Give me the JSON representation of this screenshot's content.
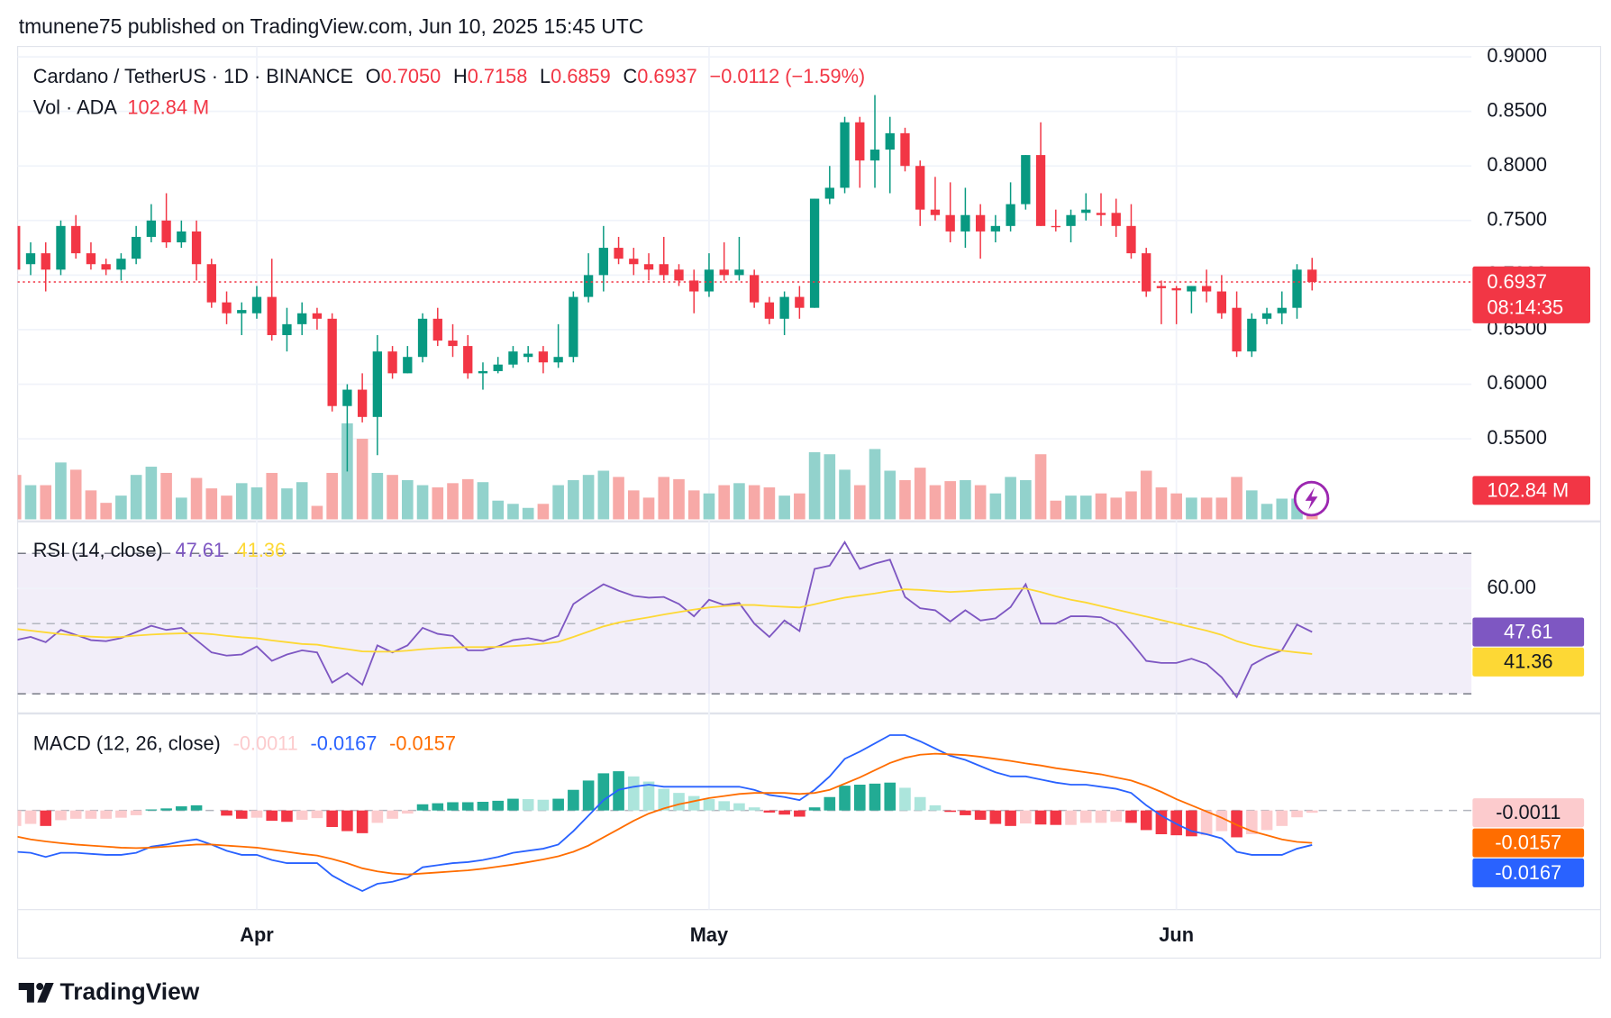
{
  "header": "tmunene75 published on TradingView.com, Jun 10, 2025 15:45 UTC",
  "footer": "TradingView",
  "chart_data": [
    {
      "type": "candlestick",
      "title": "Cardano / TetherUS · 1D · BINANCE",
      "ohlc_keys": [
        "O",
        "H",
        "L",
        "C"
      ],
      "ohlc_labels": [
        "0.7050",
        "0.7158",
        "0.6859",
        "0.6937"
      ],
      "change": "−0.0112 (−1.59%)",
      "countdown": "08:14:35",
      "up_color": "#089981",
      "down_color": "#f23645",
      "grid": true,
      "categories": [
        null,
        null,
        null,
        null,
        null,
        null,
        null,
        null,
        null,
        null,
        null,
        null,
        null,
        null,
        null,
        null,
        "Apr",
        null,
        null,
        null,
        null,
        null,
        null,
        null,
        null,
        null,
        null,
        null,
        null,
        null,
        null,
        null,
        null,
        null,
        null,
        null,
        null,
        null,
        null,
        null,
        null,
        null,
        null,
        null,
        null,
        null,
        "May",
        null,
        null,
        null,
        null,
        null,
        null,
        null,
        null,
        null,
        null,
        null,
        null,
        null,
        null,
        null,
        null,
        null,
        null,
        null,
        null,
        null,
        null,
        null,
        null,
        null,
        null,
        null,
        null,
        null,
        null,
        "Jun",
        null,
        null,
        null,
        null,
        null,
        null,
        null,
        null,
        null
      ],
      "open": [
        0.745,
        0.71,
        0.72,
        0.705,
        0.745,
        0.72,
        0.71,
        0.705,
        0.715,
        0.735,
        0.75,
        0.73,
        0.74,
        0.71,
        0.675,
        0.665,
        0.665,
        0.68,
        0.645,
        0.655,
        0.665,
        0.66,
        0.58,
        0.595,
        0.57,
        0.63,
        0.61,
        0.625,
        0.66,
        0.64,
        0.635,
        0.61,
        0.612,
        0.618,
        0.625,
        0.63,
        0.62,
        0.625,
        0.68,
        0.7,
        0.725,
        0.715,
        0.71,
        0.71,
        0.705,
        0.695,
        0.685,
        0.705,
        0.7,
        0.7,
        0.675,
        0.66,
        0.68,
        0.67,
        0.77,
        0.78,
        0.84,
        0.805,
        0.815,
        0.83,
        0.8,
        0.76,
        0.755,
        0.74,
        0.755,
        0.74,
        0.745,
        0.765,
        0.81,
        0.745,
        0.745,
        0.757,
        0.757,
        0.757,
        0.745,
        0.72,
        0.69,
        0.688,
        0.685,
        0.69,
        0.685,
        0.67,
        0.63,
        0.66,
        0.665,
        0.67,
        0.705
      ],
      "high": [
        0.745,
        0.73,
        0.73,
        0.75,
        0.755,
        0.73,
        0.715,
        0.72,
        0.745,
        0.765,
        0.775,
        0.75,
        0.75,
        0.715,
        0.685,
        0.675,
        0.69,
        0.715,
        0.67,
        0.675,
        0.67,
        0.665,
        0.6,
        0.61,
        0.645,
        0.635,
        0.635,
        0.665,
        0.67,
        0.655,
        0.645,
        0.62,
        0.625,
        0.635,
        0.635,
        0.635,
        0.655,
        0.685,
        0.72,
        0.745,
        0.735,
        0.725,
        0.72,
        0.735,
        0.71,
        0.705,
        0.72,
        0.73,
        0.735,
        0.705,
        0.68,
        0.685,
        0.69,
        0.77,
        0.8,
        0.845,
        0.845,
        0.865,
        0.845,
        0.835,
        0.805,
        0.79,
        0.785,
        0.78,
        0.765,
        0.755,
        0.785,
        0.81,
        0.84,
        0.76,
        0.76,
        0.775,
        0.775,
        0.77,
        0.765,
        0.725,
        0.695,
        0.69,
        0.69,
        0.705,
        0.7,
        0.685,
        0.665,
        0.67,
        0.685,
        0.71,
        0.7158
      ],
      "low": [
        0.7,
        0.7,
        0.685,
        0.7,
        0.715,
        0.705,
        0.7,
        0.695,
        0.71,
        0.73,
        0.725,
        0.725,
        0.695,
        0.67,
        0.655,
        0.645,
        0.66,
        0.64,
        0.63,
        0.645,
        0.65,
        0.575,
        0.52,
        0.565,
        0.535,
        0.605,
        0.61,
        0.62,
        0.635,
        0.625,
        0.605,
        0.595,
        0.61,
        0.615,
        0.62,
        0.61,
        0.615,
        0.62,
        0.675,
        0.685,
        0.71,
        0.7,
        0.695,
        0.695,
        0.69,
        0.665,
        0.68,
        0.695,
        0.695,
        0.67,
        0.655,
        0.645,
        0.66,
        0.67,
        0.765,
        0.775,
        0.78,
        0.78,
        0.775,
        0.795,
        0.745,
        0.75,
        0.73,
        0.725,
        0.715,
        0.73,
        0.74,
        0.76,
        0.745,
        0.74,
        0.73,
        0.75,
        0.745,
        0.735,
        0.715,
        0.68,
        0.655,
        0.655,
        0.665,
        0.675,
        0.66,
        0.625,
        0.625,
        0.655,
        0.655,
        0.66,
        0.6859
      ],
      "close": [
        0.705,
        0.72,
        0.705,
        0.745,
        0.72,
        0.71,
        0.705,
        0.715,
        0.735,
        0.75,
        0.73,
        0.74,
        0.71,
        0.675,
        0.665,
        0.668,
        0.68,
        0.645,
        0.655,
        0.665,
        0.66,
        0.58,
        0.595,
        0.57,
        0.63,
        0.61,
        0.625,
        0.66,
        0.64,
        0.635,
        0.61,
        0.612,
        0.618,
        0.63,
        0.628,
        0.62,
        0.625,
        0.68,
        0.7,
        0.725,
        0.715,
        0.71,
        0.705,
        0.7,
        0.695,
        0.685,
        0.705,
        0.7,
        0.705,
        0.675,
        0.66,
        0.68,
        0.67,
        0.77,
        0.78,
        0.84,
        0.805,
        0.815,
        0.83,
        0.8,
        0.76,
        0.755,
        0.74,
        0.755,
        0.74,
        0.745,
        0.765,
        0.81,
        0.745,
        0.744,
        0.755,
        0.76,
        0.755,
        0.745,
        0.72,
        0.685,
        0.688,
        0.686,
        0.69,
        0.685,
        0.665,
        0.63,
        0.66,
        0.665,
        0.67,
        0.705,
        0.6937
      ],
      "volume": {
        "name": "Vol · ADA",
        "last_label": "102.84 M",
        "up_color": "#92d2cc",
        "down_color": "#f7a9a7",
        "values": [
          221,
          170,
          170,
          283,
          247,
          144,
          82,
          118,
          221,
          262,
          231,
          108,
          206,
          154,
          118,
          180,
          159,
          231,
          154,
          185,
          67,
          231,
          478,
          401,
          231,
          221,
          195,
          170,
          159,
          180,
          200,
          185,
          93,
          77,
          57,
          77,
          170,
          195,
          221,
          242,
          211,
          144,
          108,
          211,
          200,
          144,
          129,
          170,
          180,
          170,
          159,
          118,
          129,
          334,
          324,
          247,
          170,
          350,
          242,
          195,
          257,
          170,
          190,
          195,
          170,
          129,
          211,
          195,
          324,
          93,
          118,
          118,
          129,
          108,
          139,
          242,
          159,
          129,
          108,
          108,
          108,
          211,
          144,
          77,
          103,
          103,
          102.84
        ]
      },
      "ylim": [
        0.4743,
        0.9095
      ],
      "yticks": [
        {
          "value": 0.55,
          "label": "0.5500"
        },
        {
          "value": 0.6,
          "label": "0.6000"
        },
        {
          "value": 0.65,
          "label": "0.6500"
        },
        {
          "value": 0.7,
          "label": "0.7000"
        },
        {
          "value": 0.75,
          "label": "0.7500"
        },
        {
          "value": 0.8,
          "label": "0.8000"
        },
        {
          "value": 0.85,
          "label": "0.8500"
        },
        {
          "value": 0.9,
          "label": "0.9000"
        }
      ]
    },
    {
      "type": "line",
      "title": "RSI (14, close)",
      "ylim": [
        24.71,
        78.24
      ],
      "yticks": [
        {
          "value": 60,
          "label": "60.00"
        }
      ],
      "upper_band": 70,
      "middle_band": 50,
      "lower_band": 30,
      "band_color": "#7e57c2",
      "series": [
        {
          "color": "#7e57c2",
          "values": [
            45.3,
            46.2,
            44.7,
            48.2,
            46.8,
            45.3,
            45.0,
            45.9,
            47.6,
            49.4,
            48.2,
            48.8,
            45.3,
            41.8,
            40.9,
            41.2,
            43.5,
            39.4,
            41.2,
            42.4,
            41.8,
            33.2,
            35.9,
            32.6,
            43.8,
            41.8,
            43.8,
            48.8,
            47.1,
            46.5,
            42.4,
            42.4,
            43.5,
            45.3,
            45.9,
            45.0,
            46.5,
            55.6,
            58.5,
            61.2,
            59.4,
            57.9,
            57.4,
            57.6,
            55.6,
            52.1,
            56.8,
            55.3,
            55.9,
            50.0,
            46.2,
            50.9,
            47.9,
            65.6,
            66.5,
            73.2,
            65.6,
            67.1,
            68.2,
            57.6,
            54.4,
            53.8,
            50.6,
            53.8,
            50.9,
            51.5,
            54.7,
            61.2,
            50.0,
            50.0,
            52.1,
            52.1,
            51.8,
            49.7,
            44.7,
            39.4,
            38.8,
            38.8,
            40.0,
            38.5,
            34.7,
            29.1,
            38.2,
            40.6,
            42.4,
            49.7,
            47.61
          ]
        },
        {
          "color": "#fdd835",
          "values": [
            48.5,
            48.0,
            47.5,
            47.0,
            46.6,
            46.3,
            46.1,
            46.2,
            46.6,
            46.9,
            47.1,
            47.2,
            47.3,
            47.0,
            46.5,
            46.1,
            45.8,
            45.2,
            44.7,
            44.2,
            44.0,
            43.3,
            42.7,
            42.1,
            42.0,
            42.0,
            42.3,
            42.7,
            43.0,
            43.2,
            43.3,
            43.3,
            43.4,
            43.6,
            43.9,
            44.3,
            44.8,
            46.2,
            47.7,
            49.2,
            50.3,
            51.1,
            51.8,
            52.6,
            53.3,
            54.0,
            54.6,
            55.0,
            55.3,
            55.3,
            55.0,
            54.8,
            54.6,
            55.5,
            56.5,
            57.4,
            58.0,
            58.6,
            59.3,
            59.8,
            59.6,
            59.3,
            59.0,
            59.2,
            59.5,
            59.7,
            59.9,
            60.0,
            59.0,
            57.8,
            56.8,
            56.0,
            55.0,
            54.0,
            53.0,
            52.0,
            51.0,
            50.0,
            49.0,
            48.0,
            46.8,
            45.0,
            43.8,
            43.0,
            42.3,
            41.8,
            41.36
          ]
        }
      ]
    },
    {
      "type": "line",
      "title": "MACD (12, 26, close)",
      "ylim": [
        -0.0475,
        0.045
      ],
      "series": [
        {
          "style": "histogram",
          "colors": [
            "#22ab94",
            "#ace5dc",
            "#f23645",
            "#fccbcd"
          ],
          "values": [
            -0.0075,
            -0.0065,
            -0.0075,
            -0.0047,
            -0.004,
            -0.004,
            -0.004,
            -0.0035,
            -0.0023,
            0.0005,
            0.001,
            0.002,
            0.0025,
            0,
            -0.0025,
            -0.004,
            -0.0035,
            -0.005,
            -0.0055,
            -0.0045,
            -0.0037,
            -0.008,
            -0.01,
            -0.011,
            -0.006,
            -0.004,
            -0.0015,
            0.003,
            0.0035,
            0.004,
            0.004,
            0.0042,
            0.0047,
            0.0057,
            0.0055,
            0.0052,
            0.0057,
            0.01,
            0.0145,
            0.018,
            0.019,
            0.0165,
            0.014,
            0.0105,
            0.0085,
            0.007,
            0.0055,
            0.0045,
            0.0035,
            0.0015,
            -0.001,
            -0.002,
            -0.003,
            0.0015,
            0.0065,
            0.012,
            0.0125,
            0.013,
            0.0135,
            0.011,
            0.0065,
            0.0025,
            -0.0007,
            -0.0023,
            -0.0045,
            -0.0065,
            -0.0075,
            -0.0063,
            -0.0068,
            -0.007,
            -0.007,
            -0.006,
            -0.006,
            -0.0055,
            -0.006,
            -0.0095,
            -0.0115,
            -0.012,
            -0.0125,
            -0.012,
            -0.01,
            -0.013,
            -0.0115,
            -0.0095,
            -0.0075,
            -0.0033,
            -0.0011
          ]
        },
        {
          "color": "#2962ff",
          "values": [
            -0.02,
            -0.0205,
            -0.0225,
            -0.0205,
            -0.0205,
            -0.021,
            -0.0215,
            -0.0215,
            -0.0205,
            -0.0175,
            -0.0165,
            -0.015,
            -0.014,
            -0.0165,
            -0.0195,
            -0.0215,
            -0.0215,
            -0.024,
            -0.0255,
            -0.0255,
            -0.0255,
            -0.0315,
            -0.0355,
            -0.039,
            -0.0355,
            -0.0345,
            -0.0325,
            -0.0275,
            -0.0265,
            -0.0255,
            -0.025,
            -0.024,
            -0.0225,
            -0.0205,
            -0.0195,
            -0.0185,
            -0.0165,
            -0.01,
            -0.0025,
            0.005,
            0.01,
            0.0115,
            0.0125,
            0.0115,
            0.0115,
            0.0115,
            0.0115,
            0.0115,
            0.0115,
            0.01,
            0.0075,
            0.0065,
            0.005,
            0.01,
            0.0165,
            0.025,
            0.0285,
            0.0325,
            0.0365,
            0.0365,
            0.0335,
            0.03,
            0.0265,
            0.0245,
            0.0215,
            0.0185,
            0.0165,
            0.0165,
            0.015,
            0.0135,
            0.0125,
            0.0125,
            0.0115,
            0.0105,
            0.0085,
            0.0025,
            -0.0025,
            -0.0065,
            -0.01,
            -0.0115,
            -0.0135,
            -0.02,
            -0.0215,
            -0.0215,
            -0.0215,
            -0.0185,
            -0.0167
          ]
        },
        {
          "color": "#ff6d00",
          "values": [
            -0.0125,
            -0.014,
            -0.015,
            -0.0158,
            -0.0165,
            -0.017,
            -0.0175,
            -0.018,
            -0.0182,
            -0.018,
            -0.0175,
            -0.017,
            -0.0165,
            -0.0165,
            -0.017,
            -0.0175,
            -0.018,
            -0.019,
            -0.02,
            -0.021,
            -0.0218,
            -0.0235,
            -0.0255,
            -0.028,
            -0.0295,
            -0.0305,
            -0.031,
            -0.0305,
            -0.03,
            -0.0295,
            -0.029,
            -0.0282,
            -0.0272,
            -0.0262,
            -0.025,
            -0.0237,
            -0.0222,
            -0.02,
            -0.017,
            -0.013,
            -0.009,
            -0.005,
            -0.0015,
            0.001,
            0.003,
            0.0045,
            0.006,
            0.007,
            0.008,
            0.0085,
            0.0085,
            0.0085,
            0.008,
            0.0085,
            0.01,
            0.013,
            0.016,
            0.0195,
            0.023,
            0.0255,
            0.027,
            0.0275,
            0.0272,
            0.0268,
            0.026,
            0.025,
            0.024,
            0.0228,
            0.0218,
            0.0205,
            0.0195,
            0.0185,
            0.0175,
            0.016,
            0.0145,
            0.012,
            0.009,
            0.0055,
            0.0025,
            -0.0005,
            -0.0035,
            -0.007,
            -0.01,
            -0.012,
            -0.014,
            -0.0152,
            -0.0157
          ]
        }
      ]
    }
  ]
}
